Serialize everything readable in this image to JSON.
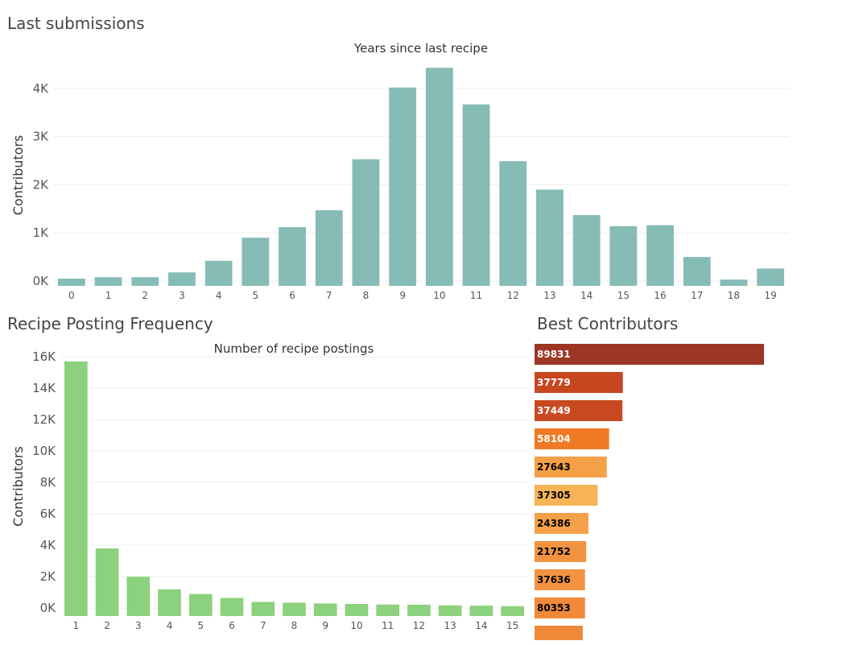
{
  "sections": {
    "last_submissions": "Last submissions",
    "recipe_frequency": "Recipe Posting Frequency",
    "best_contributors": "Best Contributors"
  },
  "colors": {
    "teal": "#86bcb6",
    "green": "#8cd17d"
  },
  "chart_data": [
    {
      "type": "bar",
      "title": "Years since last recipe",
      "xlabel": "",
      "ylabel": "Contributors",
      "categories": [
        "0",
        "1",
        "2",
        "3",
        "4",
        "5",
        "6",
        "7",
        "8",
        "9",
        "10",
        "11",
        "12",
        "13",
        "14",
        "15",
        "16",
        "17",
        "18",
        "19"
      ],
      "values": [
        50,
        80,
        80,
        180,
        420,
        900,
        1120,
        1470,
        2530,
        4020,
        4430,
        3670,
        2490,
        1900,
        1370,
        1140,
        1160,
        500,
        30,
        260
      ],
      "ylim": [
        -100,
        4500
      ],
      "yticks": [
        0,
        1000,
        2000,
        3000,
        4000
      ],
      "ytick_labels": [
        "0K",
        "1K",
        "2K",
        "3K",
        "4K"
      ],
      "grid": true
    },
    {
      "type": "bar",
      "title": "Number of recipe postings",
      "xlabel": "",
      "ylabel": "Contributors",
      "categories": [
        "1",
        "2",
        "3",
        "4",
        "5",
        "6",
        "7",
        "8",
        "9",
        "10",
        "11",
        "12",
        "13",
        "14",
        "15"
      ],
      "values": [
        15700,
        3800,
        2000,
        1200,
        900,
        650,
        400,
        350,
        300,
        270,
        230,
        220,
        180,
        160,
        130
      ],
      "ylim": [
        -500,
        16000
      ],
      "yticks": [
        0,
        2000,
        4000,
        6000,
        8000,
        10000,
        12000,
        14000,
        16000
      ],
      "ytick_labels": [
        "0K",
        "2K",
        "4K",
        "6K",
        "8K",
        "10K",
        "12K",
        "14K",
        "16K"
      ],
      "grid": true
    },
    {
      "type": "bar",
      "orientation": "horizontal",
      "title": "",
      "categories": [
        "89831",
        "37779",
        "37449",
        "58104",
        "27643",
        "37305",
        "24386",
        "21752",
        "37636",
        "80353",
        ""
      ],
      "values": [
        100,
        38.5,
        38.3,
        32.5,
        31.5,
        27.5,
        23.5,
        22.5,
        22,
        22,
        21
      ],
      "colors": [
        "#9c3625",
        "#c5461f",
        "#c94a21",
        "#f07a24",
        "#f4a047",
        "#f6b457",
        "#f5a14a",
        "#f29341",
        "#f29341",
        "#f0893a",
        "#f0893a"
      ],
      "label_colors": [
        "#ffffff",
        "#ffffff",
        "#ffffff",
        "#ffffff",
        "#000000",
        "#000000",
        "#000000",
        "#000000",
        "#000000",
        "#000000",
        "#000000"
      ]
    }
  ]
}
